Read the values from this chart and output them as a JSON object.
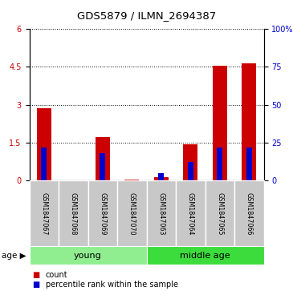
{
  "title": "GDS5879 / ILMN_2694387",
  "samples": [
    "GSM1847067",
    "GSM1847068",
    "GSM1847069",
    "GSM1847070",
    "GSM1847063",
    "GSM1847064",
    "GSM1847065",
    "GSM1847066"
  ],
  "count_values": [
    2.85,
    0.0,
    1.72,
    0.02,
    0.12,
    1.42,
    4.55,
    4.65
  ],
  "percentile_values": [
    22,
    0,
    18,
    0,
    5,
    12,
    22,
    22
  ],
  "groups": [
    {
      "label": "young",
      "start": 0,
      "end": 4,
      "color": "#90ee90"
    },
    {
      "label": "middle age",
      "start": 4,
      "end": 8,
      "color": "#3ddc3d"
    }
  ],
  "ylim_left": [
    0,
    6
  ],
  "ylim_right": [
    0,
    100
  ],
  "yticks_left": [
    0,
    1.5,
    3,
    4.5,
    6
  ],
  "yticks_right": [
    0,
    25,
    50,
    75,
    100
  ],
  "ytick_labels_right": [
    "0",
    "25",
    "50",
    "75",
    "100%"
  ],
  "bar_color_count": "#cc0000",
  "bar_color_percentile": "#0000cc",
  "background_color": "#ffffff",
  "sample_label_area_color": "#c8c8c8",
  "young_color": "#90ee90",
  "middle_age_color": "#3ddc3d",
  "age_label": "age",
  "legend_count": "count",
  "legend_percentile": "percentile rank within the sample"
}
